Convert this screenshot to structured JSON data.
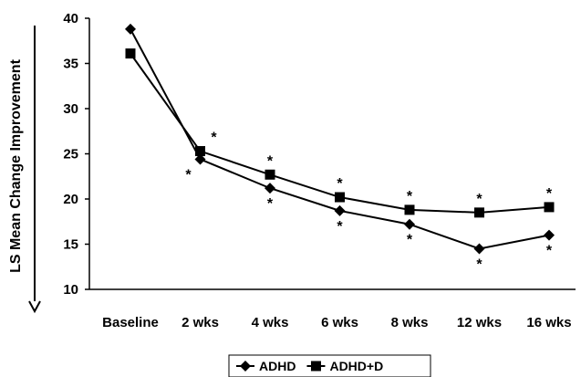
{
  "chart_data": {
    "type": "line",
    "categories": [
      "Baseline",
      "2 wks",
      "4 wks",
      "6 wks",
      "8 wks",
      "12 wks",
      "16 wks"
    ],
    "series": [
      {
        "name": "ADHD",
        "marker": "diamond",
        "values": [
          38.8,
          24.4,
          21.2,
          18.7,
          17.2,
          14.5,
          16.0
        ]
      },
      {
        "name": "ADHD+D",
        "marker": "square",
        "values": [
          36.1,
          25.3,
          22.7,
          20.2,
          18.8,
          18.5,
          19.1
        ]
      }
    ],
    "significance_marker": "*",
    "significance": {
      "ADHD": [
        false,
        true,
        true,
        true,
        true,
        true,
        true
      ],
      "ADHD+D": [
        false,
        true,
        true,
        true,
        true,
        true,
        true
      ]
    },
    "title": "",
    "xlabel": "",
    "ylabel": "LS Mean Change Improvement",
    "ylim": [
      10,
      40
    ],
    "yticks": [
      10,
      15,
      20,
      25,
      30,
      35,
      40
    ],
    "y_axis_arrow": "down",
    "grid": false,
    "legend": "bottom-center",
    "line_color": "#000000"
  }
}
